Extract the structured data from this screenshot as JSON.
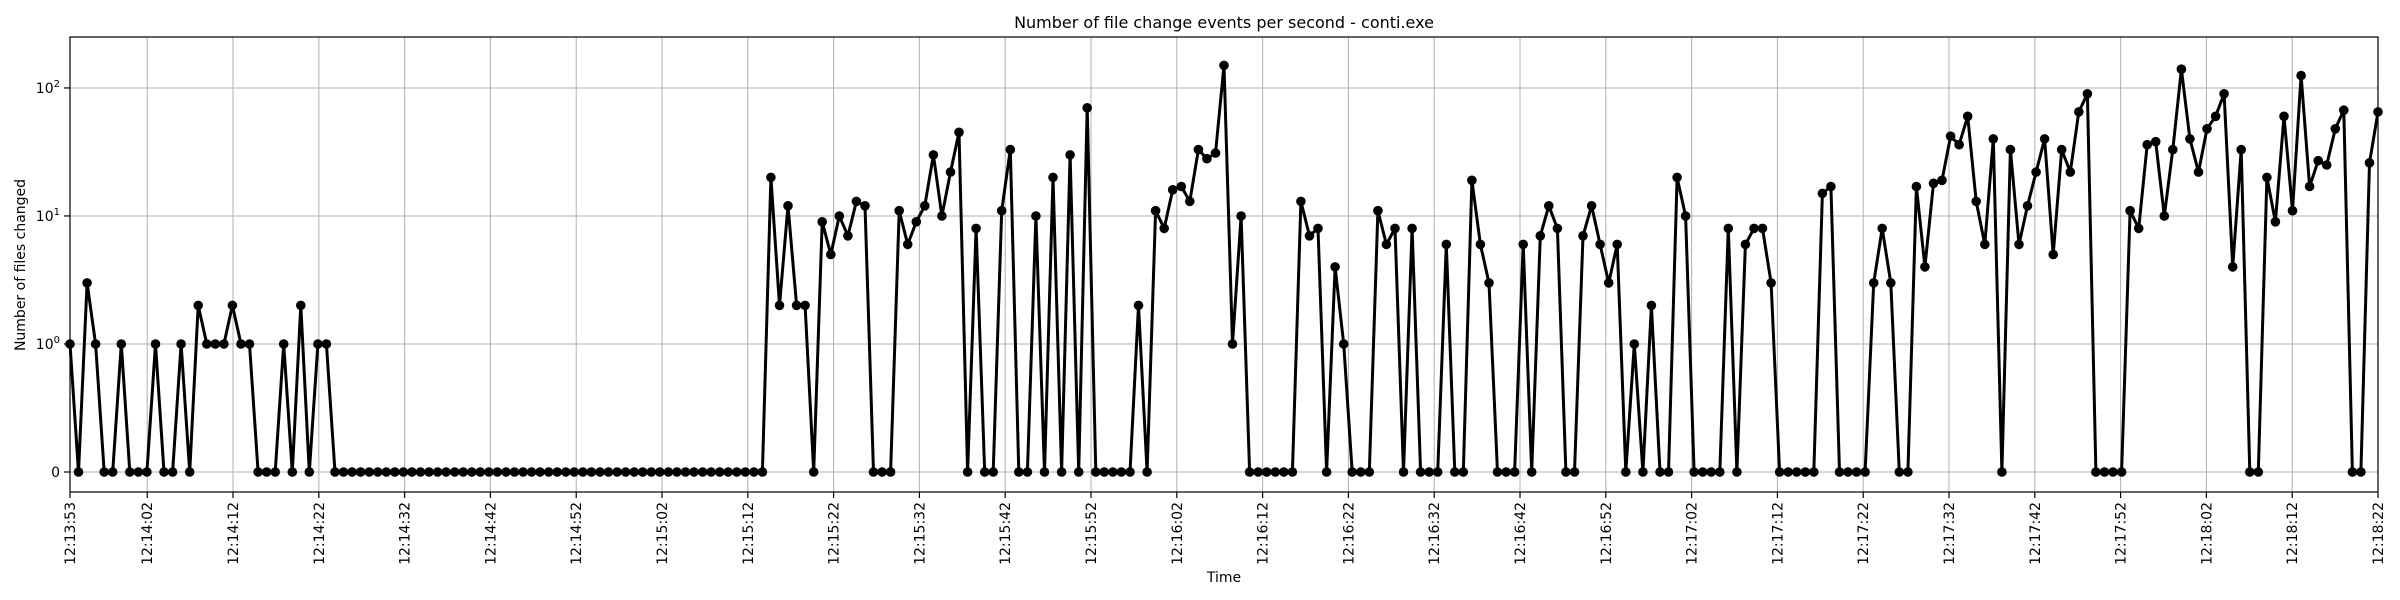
{
  "chart_data": {
    "type": "line",
    "title": "Number of file change events per second - conti.exe",
    "xlabel": "Time",
    "ylabel": "Number of files changed",
    "yscale": "symlog",
    "ylim": [
      0,
      250
    ],
    "y_ticks": [
      {
        "value": 0,
        "label": "0"
      },
      {
        "value": 1,
        "label": "10^0"
      },
      {
        "value": 10,
        "label": "10^1"
      },
      {
        "value": 100,
        "label": "10^2"
      }
    ],
    "grid": true,
    "x_start": "12:13:53",
    "x_end": "12:18:22",
    "x_tick_labels": [
      "12:13:53",
      "12:14:02",
      "12:14:12",
      "12:14:22",
      "12:14:32",
      "12:14:42",
      "12:14:52",
      "12:15:02",
      "12:15:12",
      "12:15:22",
      "12:15:32",
      "12:15:42",
      "12:15:52",
      "12:16:02",
      "12:16:12",
      "12:16:22",
      "12:16:32",
      "12:16:42",
      "12:16:52",
      "12:17:02",
      "12:17:12",
      "12:17:22",
      "12:17:32",
      "12:17:42",
      "12:17:52",
      "12:18:02",
      "12:18:12",
      "12:18:22"
    ],
    "series": [
      {
        "color": "#000000",
        "marker": "circle",
        "values": [
          1,
          0,
          3,
          1,
          0,
          0,
          1,
          0,
          0,
          0,
          1,
          0,
          0,
          1,
          0,
          2,
          1,
          1,
          1,
          2,
          1,
          1,
          0,
          0,
          0,
          1,
          0,
          2,
          0,
          1,
          1,
          0,
          0,
          0,
          0,
          0,
          0,
          0,
          0,
          0,
          0,
          0,
          0,
          0,
          0,
          0,
          0,
          0,
          0,
          0,
          0,
          0,
          0,
          0,
          0,
          0,
          0,
          0,
          0,
          0,
          0,
          0,
          0,
          0,
          0,
          0,
          0,
          0,
          0,
          0,
          0,
          0,
          0,
          0,
          0,
          0,
          0,
          0,
          0,
          0,
          0,
          0,
          20,
          2,
          12,
          2,
          2,
          0,
          9,
          5,
          10,
          7,
          13,
          12,
          0,
          0,
          0,
          11,
          6,
          9,
          12,
          30,
          10,
          22,
          45,
          0,
          8,
          0,
          0,
          11,
          33,
          0,
          0,
          10,
          0,
          20,
          0,
          30,
          0,
          70,
          0,
          0,
          0,
          0,
          0,
          2,
          0,
          11,
          8,
          16,
          17,
          13,
          33,
          28,
          31,
          150,
          1,
          10,
          0,
          0,
          0,
          0,
          0,
          0,
          13,
          7,
          8,
          0,
          4,
          1,
          0,
          0,
          0,
          11,
          6,
          8,
          0,
          8,
          0,
          0,
          0,
          6,
          0,
          0,
          19,
          6,
          3,
          0,
          0,
          0,
          6,
          0,
          7,
          12,
          8,
          0,
          0,
          7,
          12,
          6,
          3,
          6,
          0,
          1,
          0,
          2,
          0,
          0,
          20,
          10,
          0,
          0,
          0,
          0,
          8,
          0,
          6,
          8,
          8,
          3,
          0,
          0,
          0,
          0,
          0,
          15,
          17,
          0,
          0,
          0,
          0,
          3,
          8,
          3,
          0,
          0,
          17,
          4,
          18,
          19,
          42,
          36,
          60,
          13,
          6,
          40,
          0,
          33,
          6,
          12,
          22,
          40,
          5,
          33,
          22,
          65,
          90,
          0,
          0,
          0,
          0,
          11,
          8,
          36,
          38,
          10,
          33,
          140,
          40,
          22,
          48,
          60,
          90,
          4,
          33,
          0,
          0,
          20,
          9,
          60,
          11,
          125,
          17,
          27,
          25,
          48,
          67,
          0,
          0,
          26,
          65
        ]
      }
    ]
  }
}
